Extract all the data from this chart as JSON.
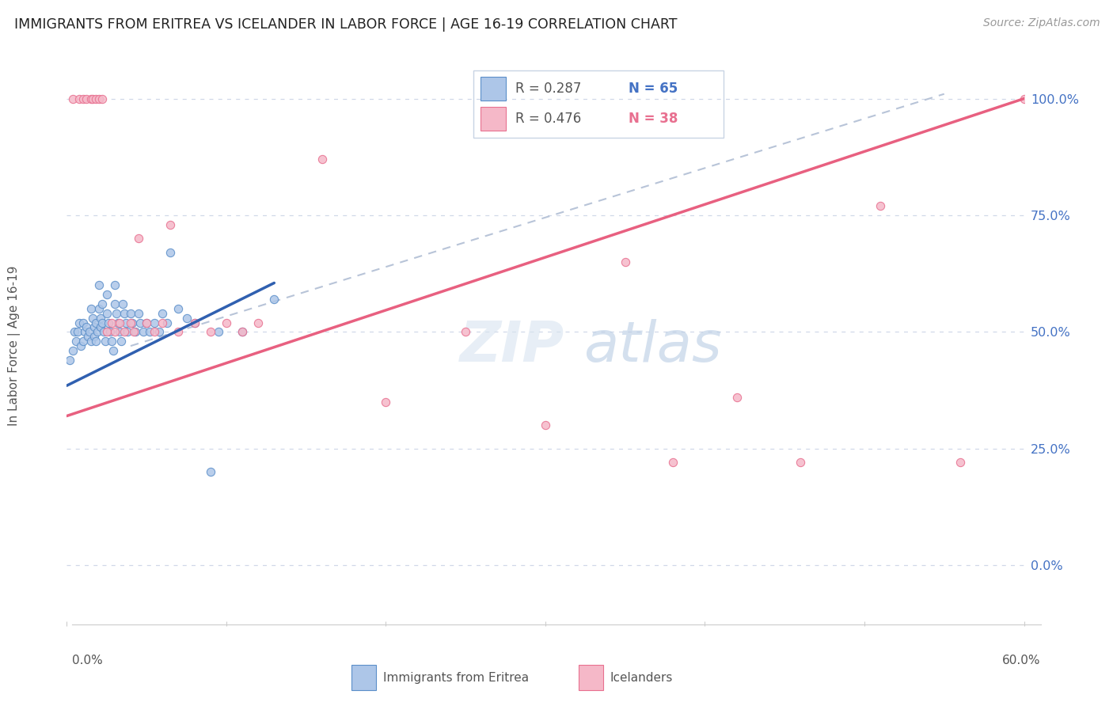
{
  "title": "IMMIGRANTS FROM ERITREA VS ICELANDER IN LABOR FORCE | AGE 16-19 CORRELATION CHART",
  "source": "Source: ZipAtlas.com",
  "ylabel": "In Labor Force | Age 16-19",
  "legend_bottom_eritrea": "Immigrants from Eritrea",
  "legend_bottom_iceland": "Icelanders",
  "eritrea_fill": "#adc6e8",
  "eritrea_edge": "#5b8fc9",
  "iceland_fill": "#f5b8c8",
  "iceland_edge": "#e87090",
  "eritrea_line_color": "#3060b0",
  "iceland_line_color": "#e86080",
  "dashed_line_color": "#b8c4d8",
  "legend_R_color": "#555555",
  "legend_N_blue": "#4472c4",
  "legend_N_pink": "#e87090",
  "ytick_color": "#4472c4",
  "grid_color": "#d0d8e8",
  "xlim": [
    0.0,
    0.6
  ],
  "ylim": [
    -0.12,
    1.06
  ],
  "yticks": [
    0.0,
    0.25,
    0.5,
    0.75,
    1.0
  ],
  "eritrea_line_x0": 0.0,
  "eritrea_line_y0": 0.385,
  "eritrea_line_x1": 0.13,
  "eritrea_line_y1": 0.605,
  "iceland_line_x0": 0.0,
  "iceland_line_y0": 0.32,
  "iceland_line_x1": 0.6,
  "iceland_line_y1": 1.0,
  "dashed_line_x0": 0.04,
  "dashed_line_y0": 0.47,
  "dashed_line_x1": 0.55,
  "dashed_line_y1": 1.01,
  "eritrea_x": [
    0.002,
    0.004,
    0.005,
    0.006,
    0.007,
    0.008,
    0.009,
    0.01,
    0.01,
    0.011,
    0.012,
    0.013,
    0.014,
    0.015,
    0.015,
    0.016,
    0.017,
    0.017,
    0.018,
    0.018,
    0.019,
    0.02,
    0.02,
    0.021,
    0.021,
    0.022,
    0.022,
    0.023,
    0.024,
    0.025,
    0.025,
    0.026,
    0.027,
    0.028,
    0.029,
    0.03,
    0.03,
    0.031,
    0.032,
    0.033,
    0.034,
    0.035,
    0.036,
    0.037,
    0.038,
    0.04,
    0.041,
    0.043,
    0.045,
    0.046,
    0.048,
    0.05,
    0.052,
    0.055,
    0.058,
    0.06,
    0.063,
    0.065,
    0.07,
    0.075,
    0.08,
    0.09,
    0.095,
    0.11,
    0.13
  ],
  "eritrea_y": [
    0.44,
    0.46,
    0.5,
    0.48,
    0.5,
    0.52,
    0.47,
    0.52,
    0.48,
    0.5,
    0.51,
    0.49,
    0.5,
    0.55,
    0.48,
    0.53,
    0.51,
    0.49,
    0.52,
    0.48,
    0.5,
    0.6,
    0.55,
    0.53,
    0.51,
    0.56,
    0.52,
    0.5,
    0.48,
    0.58,
    0.54,
    0.52,
    0.5,
    0.48,
    0.46,
    0.6,
    0.56,
    0.54,
    0.52,
    0.5,
    0.48,
    0.56,
    0.54,
    0.52,
    0.5,
    0.54,
    0.52,
    0.5,
    0.54,
    0.52,
    0.5,
    0.52,
    0.5,
    0.52,
    0.5,
    0.54,
    0.52,
    0.67,
    0.55,
    0.53,
    0.52,
    0.2,
    0.5,
    0.5,
    0.57
  ],
  "iceland_x": [
    0.004,
    0.008,
    0.01,
    0.012,
    0.015,
    0.016,
    0.018,
    0.02,
    0.022,
    0.025,
    0.028,
    0.03,
    0.033,
    0.036,
    0.04,
    0.042,
    0.045,
    0.05,
    0.055,
    0.06,
    0.065,
    0.07,
    0.08,
    0.09,
    0.1,
    0.11,
    0.12,
    0.16,
    0.2,
    0.25,
    0.3,
    0.35,
    0.38,
    0.42,
    0.46,
    0.51,
    0.56,
    0.6
  ],
  "iceland_y": [
    1.0,
    1.0,
    1.0,
    1.0,
    1.0,
    1.0,
    1.0,
    1.0,
    1.0,
    0.5,
    0.52,
    0.5,
    0.52,
    0.5,
    0.52,
    0.5,
    0.7,
    0.52,
    0.5,
    0.52,
    0.73,
    0.5,
    0.52,
    0.5,
    0.52,
    0.5,
    0.52,
    0.87,
    0.35,
    0.5,
    0.3,
    0.65,
    0.22,
    0.36,
    0.22,
    0.77,
    0.22,
    1.0
  ]
}
